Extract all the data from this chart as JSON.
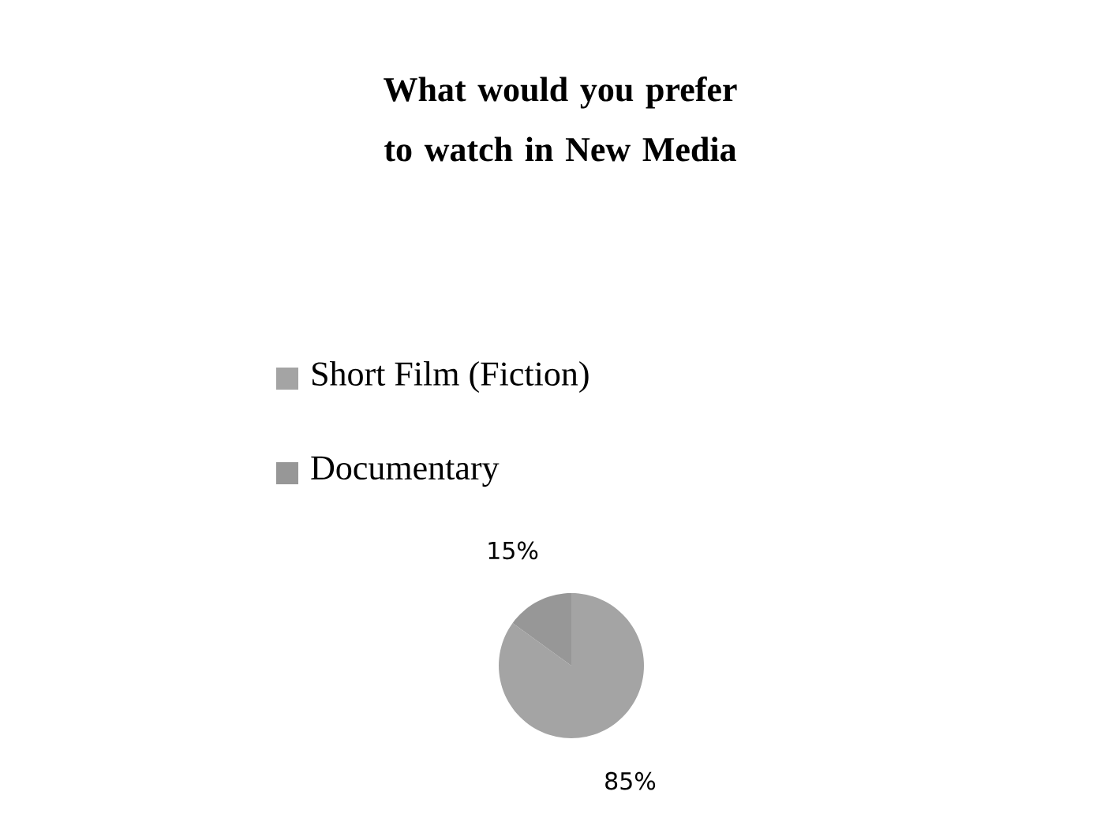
{
  "chart_data": {
    "type": "pie",
    "title": "What would you prefer to watch in New Media",
    "categories": [
      "Short Film (Fiction)",
      "Documentary"
    ],
    "values": [
      85,
      15
    ],
    "colors": [
      "#a4a4a4",
      "#979797"
    ],
    "value_labels": [
      "85%",
      "15%"
    ],
    "legend": "top"
  }
}
